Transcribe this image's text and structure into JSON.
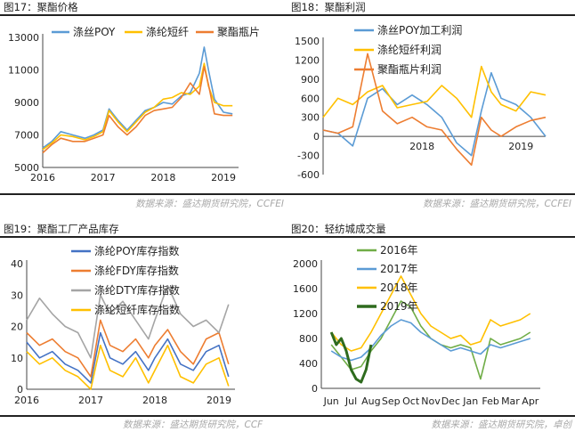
{
  "charts": [
    {
      "title": "图17：聚酯价格",
      "source": "数据来源：盛达期货研究院，CCFEI",
      "chart_data": {
        "type": "line",
        "x_ticks": [
          "2016",
          "2017",
          "2018",
          "2019"
        ],
        "x_range": [
          2016.0,
          2019.25
        ],
        "y_ticks": [
          "13000",
          "11000",
          "9000",
          "7000",
          "5000"
        ],
        "ylim": [
          5000,
          13000
        ],
        "legend": "top-left",
        "series": [
          {
            "name": "涤丝POY",
            "color": "#5B9BD5",
            "x": [
              2016,
              2016.15,
              2016.3,
              2016.5,
              2016.7,
              2016.85,
              2017,
              2017.1,
              2017.25,
              2017.4,
              2017.55,
              2017.7,
              2017.85,
              2018,
              2018.15,
              2018.3,
              2018.45,
              2018.6,
              2018.68,
              2018.75,
              2018.85,
              2019,
              2019.15
            ],
            "y": [
              6200,
              6600,
              7200,
              7000,
              6800,
              7000,
              7300,
              8600,
              7900,
              7300,
              7900,
              8500,
              8700,
              9000,
              8900,
              9400,
              9600,
              10800,
              12400,
              11000,
              9200,
              8400,
              8300
            ]
          },
          {
            "name": "涤纶短纤",
            "color": "#FFC000",
            "x": [
              2016,
              2016.15,
              2016.3,
              2016.5,
              2016.7,
              2016.85,
              2017,
              2017.1,
              2017.25,
              2017.4,
              2017.55,
              2017.7,
              2017.85,
              2018,
              2018.15,
              2018.3,
              2018.45,
              2018.6,
              2018.68,
              2018.75,
              2018.85,
              2019,
              2019.15
            ],
            "y": [
              6100,
              6500,
              7000,
              6900,
              6700,
              6900,
              7200,
              8500,
              7800,
              7200,
              7800,
              8400,
              8700,
              9200,
              9300,
              9600,
              9500,
              10000,
              11400,
              10000,
              9000,
              8800,
              8800
            ]
          },
          {
            "name": "聚酯瓶片",
            "color": "#ED7D31",
            "x": [
              2016,
              2016.15,
              2016.3,
              2016.5,
              2016.7,
              2016.85,
              2017,
              2017.1,
              2017.25,
              2017.4,
              2017.55,
              2017.7,
              2017.85,
              2018,
              2018.15,
              2018.3,
              2018.45,
              2018.6,
              2018.68,
              2018.75,
              2018.85,
              2019,
              2019.15
            ],
            "y": [
              5900,
              6400,
              6800,
              6600,
              6600,
              6800,
              7000,
              8200,
              7500,
              7000,
              7500,
              8200,
              8500,
              8600,
              8700,
              9300,
              10200,
              9500,
              11200,
              10100,
              8300,
              8200,
              8200
            ]
          }
        ]
      }
    },
    {
      "title": "图18：聚酯利润",
      "source": "数据来源：盛达期货研究院，CCFEI",
      "chart_data": {
        "type": "line",
        "x_ticks": [
          "2018",
          "2019"
        ],
        "x_range": [
          2017.0,
          2019.25
        ],
        "y_ticks": [
          "1500",
          "1200",
          "900",
          "600",
          "300",
          "0",
          "-300",
          "-600"
        ],
        "ylim": [
          -600,
          1500
        ],
        "legend": "top-center",
        "series": [
          {
            "name": "涤丝POY加工利润",
            "color": "#5B9BD5",
            "x": [
              2017,
              2017.15,
              2017.3,
              2017.45,
              2017.6,
              2017.75,
              2017.9,
              2018.05,
              2018.2,
              2018.35,
              2018.5,
              2018.6,
              2018.7,
              2018.8,
              2018.95,
              2019.1,
              2019.25
            ],
            "y": [
              100,
              50,
              -150,
              600,
              750,
              500,
              650,
              500,
              300,
              -100,
              -300,
              400,
              1000,
              600,
              500,
              300,
              0
            ]
          },
          {
            "name": "涤纶短纤利润",
            "color": "#FFC000",
            "x": [
              2017,
              2017.15,
              2017.3,
              2017.45,
              2017.6,
              2017.75,
              2017.9,
              2018.05,
              2018.2,
              2018.35,
              2018.5,
              2018.6,
              2018.7,
              2018.8,
              2018.95,
              2019.1,
              2019.25
            ],
            "y": [
              300,
              600,
              500,
              700,
              800,
              450,
              500,
              550,
              800,
              600,
              300,
              1100,
              700,
              500,
              400,
              700,
              650
            ]
          },
          {
            "name": "聚酯瓶片利润",
            "color": "#ED7D31",
            "x": [
              2017,
              2017.15,
              2017.3,
              2017.45,
              2017.6,
              2017.75,
              2017.9,
              2018.05,
              2018.2,
              2018.35,
              2018.5,
              2018.6,
              2018.7,
              2018.8,
              2018.95,
              2019.1,
              2019.25
            ],
            "y": [
              100,
              50,
              150,
              1300,
              400,
              200,
              300,
              150,
              100,
              -200,
              -450,
              300,
              100,
              0,
              150,
              250,
              300
            ]
          }
        ]
      }
    },
    {
      "title": "图19：聚酯工厂产品库存",
      "source": "数据来源：盛达期货研究院，CCF",
      "chart_data": {
        "type": "line",
        "x_ticks": [
          "2016",
          "2017",
          "2018",
          "2019"
        ],
        "x_range": [
          2016.0,
          2019.25
        ],
        "y_ticks": [
          "40",
          "30",
          "20",
          "10",
          "0"
        ],
        "ylim": [
          0,
          40
        ],
        "legend": "top-center",
        "series": [
          {
            "name": "涤纶POY库存指数",
            "color": "#4472C4",
            "x": [
              2016,
              2016.2,
              2016.4,
              2016.6,
              2016.8,
              2017,
              2017.15,
              2017.3,
              2017.5,
              2017.7,
              2017.9,
              2018,
              2018.2,
              2018.4,
              2018.6,
              2018.8,
              2019,
              2019.15
            ],
            "y": [
              15,
              10,
              12,
              8,
              6,
              2,
              18,
              10,
              8,
              12,
              6,
              10,
              16,
              8,
              6,
              12,
              14,
              4
            ]
          },
          {
            "name": "涤纶FDY库存指数",
            "color": "#ED7D31",
            "x": [
              2016,
              2016.2,
              2016.4,
              2016.6,
              2016.8,
              2017,
              2017.15,
              2017.3,
              2017.5,
              2017.7,
              2017.9,
              2018,
              2018.2,
              2018.4,
              2018.6,
              2018.8,
              2019,
              2019.15
            ],
            "y": [
              18,
              14,
              16,
              12,
              10,
              4,
              22,
              14,
              12,
              16,
              10,
              14,
              19,
              12,
              8,
              16,
              18,
              8
            ]
          },
          {
            "name": "涤纶DTY库存指数",
            "color": "#A5A5A5",
            "x": [
              2016,
              2016.2,
              2016.4,
              2016.6,
              2016.8,
              2017,
              2017.15,
              2017.3,
              2017.5,
              2017.7,
              2017.9,
              2018,
              2018.2,
              2018.4,
              2018.6,
              2018.8,
              2019,
              2019.15
            ],
            "y": [
              22,
              29,
              24,
              20,
              18,
              10,
              30,
              24,
              28,
              22,
              16,
              22,
              33,
              24,
              20,
              22,
              18,
              27
            ]
          },
          {
            "name": "涤纶短纤库存指数",
            "color": "#FFC000",
            "x": [
              2016,
              2016.2,
              2016.4,
              2016.6,
              2016.8,
              2017,
              2017.15,
              2017.3,
              2017.5,
              2017.7,
              2017.9,
              2018,
              2018.2,
              2018.4,
              2018.6,
              2018.8,
              2019,
              2019.15
            ],
            "y": [
              12,
              8,
              10,
              6,
              4,
              0,
              14,
              6,
              4,
              10,
              2,
              6,
              14,
              4,
              2,
              8,
              10,
              1
            ]
          }
        ]
      }
    },
    {
      "title": "图20：轻纺城成交量",
      "source": "数据来源：盛达期货研究院，卓创",
      "chart_data": {
        "type": "line",
        "categories": [
          "Jun",
          "Jul",
          "Aug",
          "Sep",
          "Oct",
          "Nov",
          "Dec",
          "Jan",
          "Feb",
          "Mar",
          "Apr"
        ],
        "y_ticks": [
          "2000",
          "1600",
          "1200",
          "800",
          "400",
          "0"
        ],
        "ylim": [
          0,
          2000
        ],
        "legend": "top-center",
        "series": [
          {
            "name": "2016年",
            "color": "#70AD47",
            "x": [
              0,
              0.5,
              1,
              1.5,
              2,
              2.5,
              3,
              3.5,
              4,
              4.5,
              5,
              5.5,
              6,
              6.5,
              7,
              7.5,
              8,
              8.5,
              9,
              9.5,
              10
            ],
            "y": [
              700,
              500,
              300,
              350,
              600,
              800,
              1100,
              1400,
              1300,
              1000,
              800,
              700,
              650,
              700,
              650,
              150,
              800,
              700,
              750,
              800,
              900
            ]
          },
          {
            "name": "2017年",
            "color": "#5B9BD5",
            "x": [
              0,
              0.5,
              1,
              1.5,
              2,
              2.5,
              3,
              3.5,
              4,
              4.5,
              5,
              5.5,
              6,
              6.5,
              7,
              7.5,
              8,
              8.5,
              9,
              9.5,
              10
            ],
            "y": [
              600,
              500,
              450,
              500,
              650,
              850,
              1000,
              1100,
              1050,
              900,
              800,
              700,
              600,
              650,
              600,
              550,
              700,
              650,
              700,
              750,
              800
            ]
          },
          {
            "name": "2018年",
            "color": "#FFC000",
            "x": [
              0,
              0.5,
              1,
              1.5,
              2,
              2.5,
              3,
              3.5,
              4,
              4.5,
              5,
              5.5,
              6,
              6.5,
              7,
              7.5,
              8,
              8.5,
              9,
              9.5,
              10
            ],
            "y": [
              900,
              700,
              600,
              650,
              900,
              1200,
              1500,
              1800,
              1500,
              1200,
              1000,
              900,
              800,
              850,
              700,
              750,
              1100,
              1000,
              1050,
              1100,
              1200
            ]
          },
          {
            "name": "2019年",
            "color": "#2E6B1E",
            "x": [
              0,
              0.25,
              0.5,
              0.75,
              1,
              1.25,
              1.5,
              1.75,
              2
            ],
            "y": [
              900,
              700,
              800,
              600,
              300,
              150,
              100,
              300,
              700
            ]
          }
        ]
      }
    }
  ]
}
